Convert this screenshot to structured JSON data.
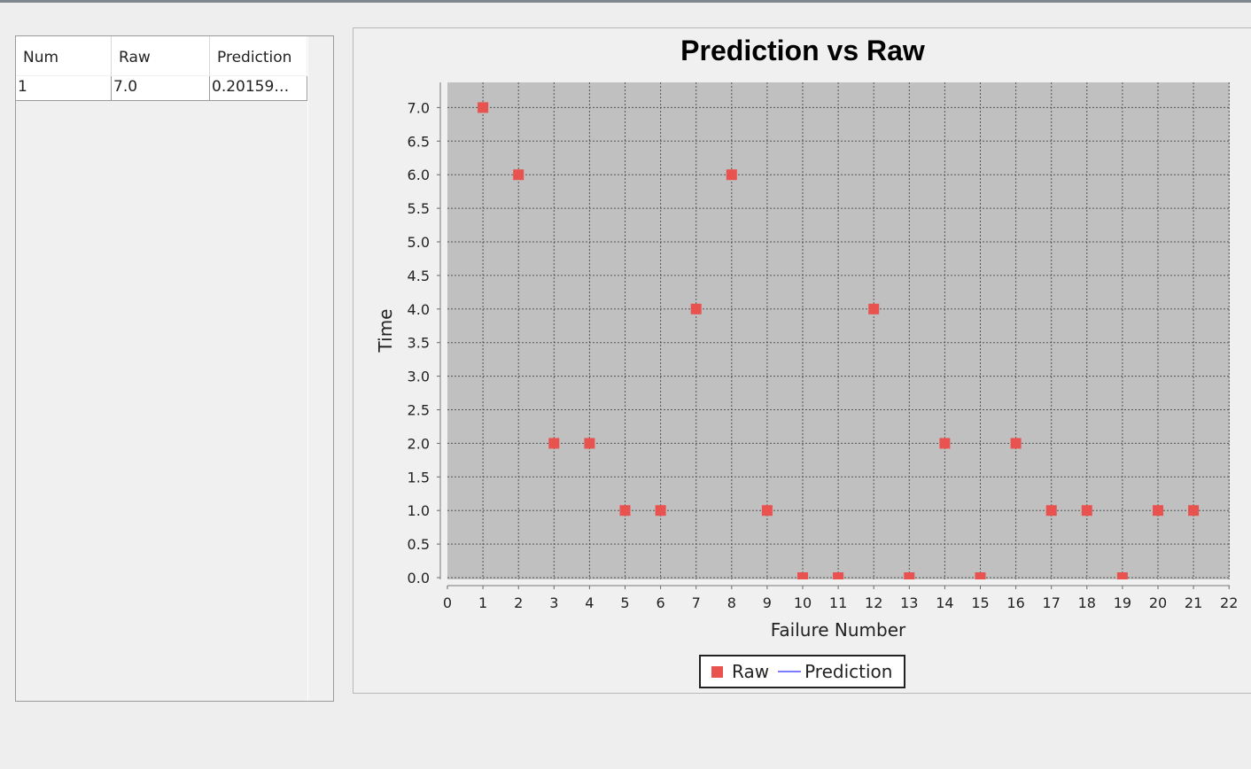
{
  "table": {
    "columns": [
      "Num",
      "Raw",
      "Prediction"
    ],
    "rows": [
      {
        "num": "1",
        "raw": "7.0",
        "prediction": "0.20159…"
      }
    ]
  },
  "chart_data": {
    "type": "scatter",
    "title": "Prediction vs Raw",
    "xlabel": "Failure Number",
    "ylabel": "Time",
    "xlim": [
      0,
      22
    ],
    "ylim": [
      0,
      7.3
    ],
    "x_ticks": [
      0,
      1,
      2,
      3,
      4,
      5,
      6,
      7,
      8,
      9,
      10,
      11,
      12,
      13,
      14,
      15,
      16,
      17,
      18,
      19,
      20,
      21,
      22
    ],
    "y_ticks": [
      "0.0",
      "0.5",
      "1.0",
      "1.5",
      "2.0",
      "2.5",
      "3.0",
      "3.5",
      "4.0",
      "4.5",
      "5.0",
      "5.5",
      "6.0",
      "6.5",
      "7.0"
    ],
    "grid": true,
    "legend_position": "bottom-center",
    "series": [
      {
        "name": "Raw",
        "color": "#e8524f",
        "marker": "square",
        "x": [
          1,
          2,
          3,
          4,
          5,
          6,
          7,
          8,
          9,
          10,
          11,
          12,
          13,
          14,
          15,
          16,
          17,
          18,
          19,
          20,
          21
        ],
        "y": [
          7,
          6,
          2,
          2,
          1,
          1,
          4,
          6,
          1,
          0,
          0,
          4,
          0,
          2,
          0,
          2,
          1,
          1,
          0,
          1,
          1
        ]
      },
      {
        "name": "Prediction",
        "color": "#7b7bff",
        "marker": "line",
        "x": [],
        "y": []
      }
    ]
  }
}
